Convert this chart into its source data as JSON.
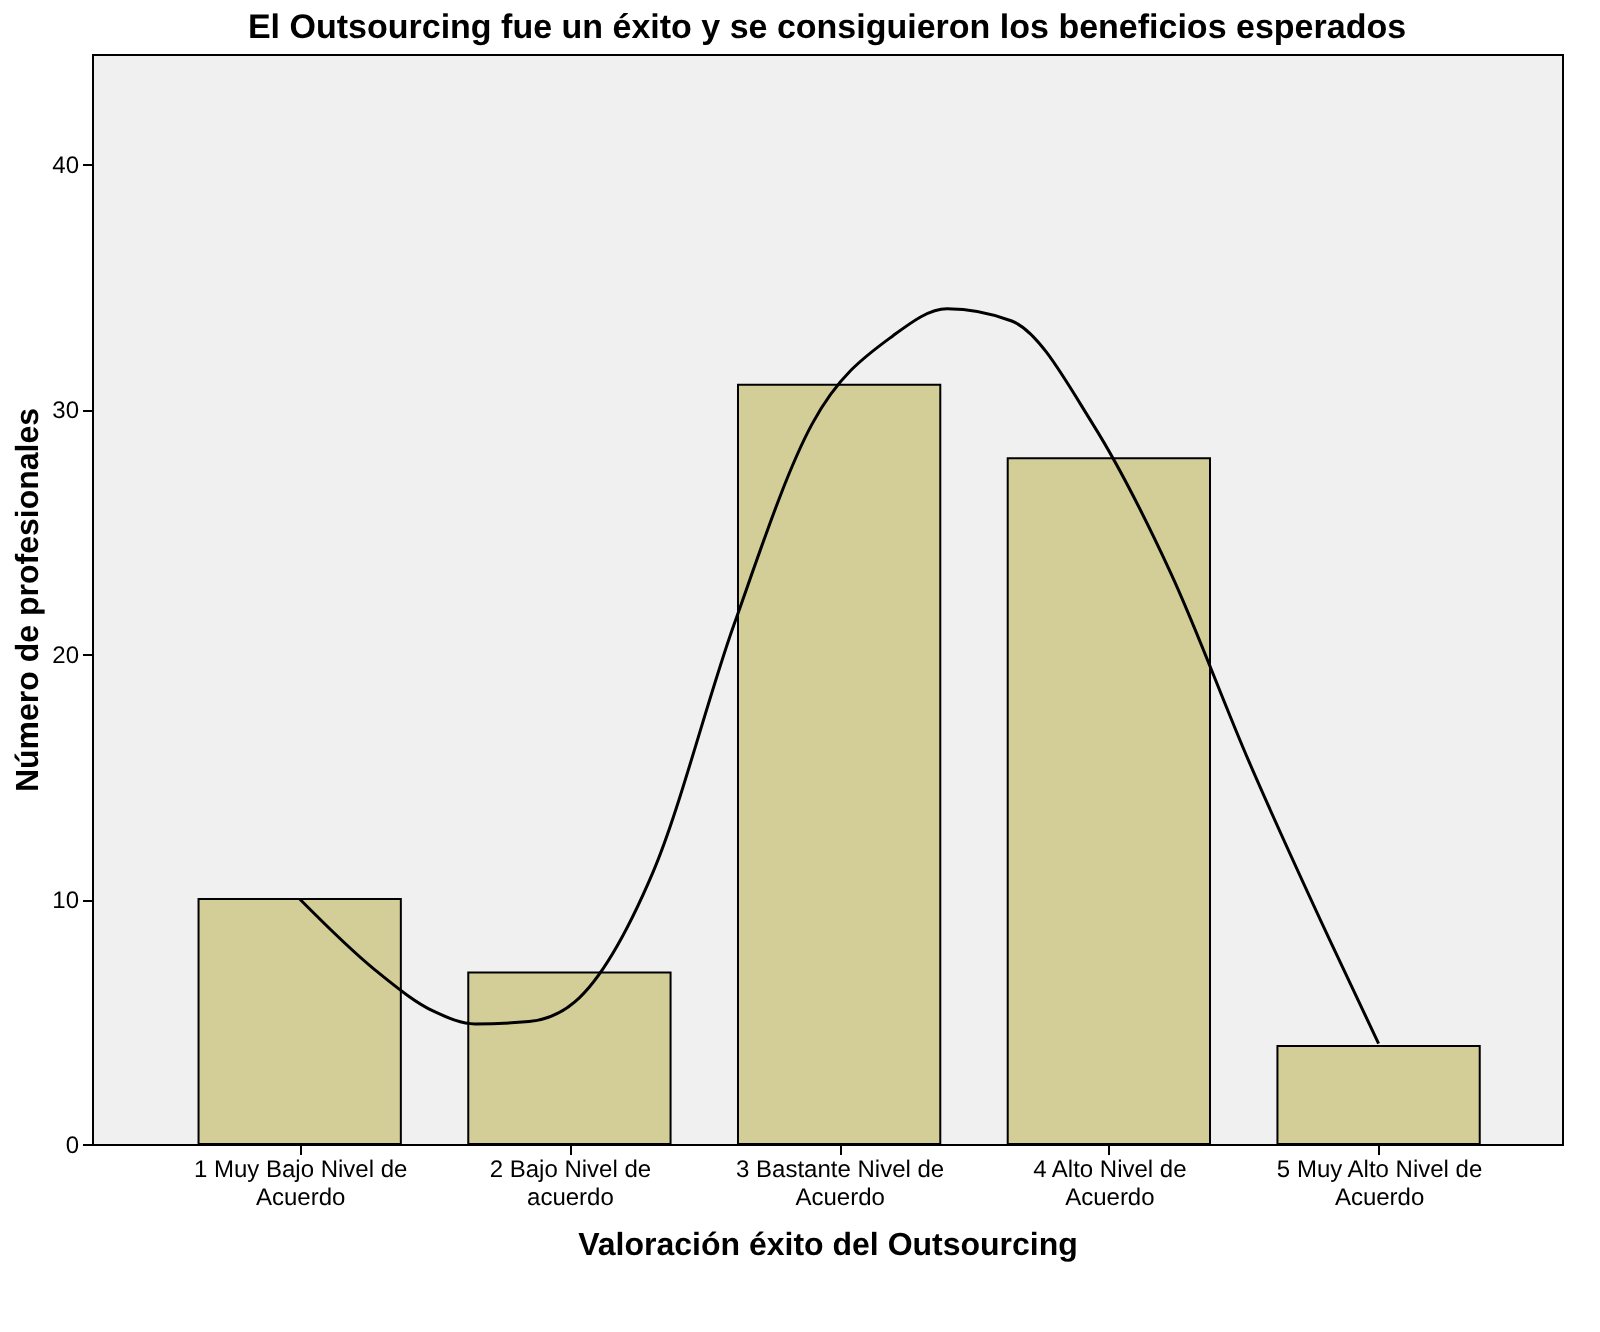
{
  "chart_data": {
    "type": "bar",
    "title": "El Outsourcing fue un éxito y se consiguieron los beneficios esperados",
    "xlabel": "Valoración éxito del Outsourcing",
    "ylabel": "Número de profesionales",
    "x": [
      1,
      2,
      3,
      4,
      5
    ],
    "series": [
      {
        "color": "#d3ce97",
        "values": [
          10,
          7,
          31,
          28,
          4
        ]
      },
      {
        "type": "line",
        "color": "#000000",
        "x": [
          1,
          1.28,
          1.5,
          1.65,
          1.85,
          2.02,
          2.31,
          2.61,
          2.9,
          3.2,
          3.4,
          3.64,
          3.94,
          4.23,
          4.52,
          4.82,
          5.0
        ],
        "values": [
          10,
          7.1,
          5.4,
          4.9,
          5.0,
          5.8,
          11.1,
          21.2,
          29.4,
          33.0,
          34.1,
          33.6,
          29.4,
          23.3,
          15.6,
          8.3,
          4.1
        ]
      }
    ],
    "xlim": [
      0.23,
      5.68
    ],
    "xticks": [
      {
        "value": 1,
        "label": "1 Muy Bajo Nivel de Acuerdo"
      },
      {
        "value": 2,
        "label": "2 Bajo Nivel de acuerdo"
      },
      {
        "value": 3,
        "label": "3 Bastante Nivel de Acuerdo"
      },
      {
        "value": 4,
        "label": "4 Alto Nivel de Acuerdo"
      },
      {
        "value": 5,
        "label": "5 Muy Alto Nivel de Acuerdo"
      }
    ],
    "ylim": [
      0,
      44.5
    ],
    "yticks": [
      0,
      10,
      20,
      30,
      40
    ]
  }
}
